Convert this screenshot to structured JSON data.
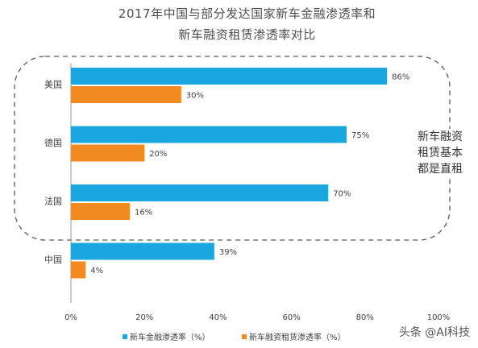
{
  "chart_data": {
    "type": "bar",
    "orientation": "horizontal",
    "title": [
      "2017年中国与部分发达国家新车金融渗透率和",
      "新车融资租赁渗透率对比"
    ],
    "categories": [
      "美国",
      "德国",
      "法国",
      "中国"
    ],
    "series": [
      {
        "name": "新车金融渗透率（%）",
        "values": [
          86,
          75,
          70,
          39
        ],
        "labels": [
          "86%",
          "75%",
          "70%",
          "39%"
        ],
        "color": "#1aa7e0"
      },
      {
        "name": "新车融资租赁渗透率（%）",
        "values": [
          30,
          20,
          16,
          4
        ],
        "labels": [
          "30%",
          "20%",
          "16%",
          "4%"
        ],
        "color": "#f28a22"
      }
    ],
    "xlim": [
      0,
      100
    ],
    "xticks": [
      "0%",
      "20%",
      "40%",
      "60%",
      "80%",
      "100%"
    ],
    "grid": false,
    "legend_position": "bottom"
  },
  "annotation": "新车融资租赁基本都是直租",
  "watermark": "头条 @AI科技"
}
